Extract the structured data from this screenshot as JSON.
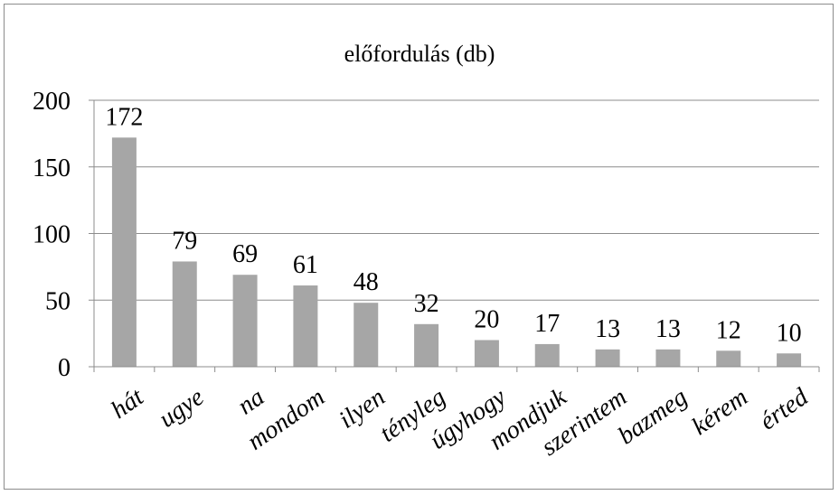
{
  "chart_data": {
    "type": "bar",
    "title": "előfordulás (db)",
    "xlabel": "",
    "ylabel": "",
    "categories": [
      "hát",
      "ugye",
      "na",
      "mondom",
      "ilyen",
      "tényleg",
      "úgyhogy",
      "mondjuk",
      "szerintem",
      "bazmeg",
      "kérem",
      "érted"
    ],
    "values": [
      172,
      79,
      69,
      61,
      48,
      32,
      20,
      17,
      13,
      13,
      12,
      10
    ],
    "ylim": [
      0,
      200
    ],
    "yticks": [
      0,
      50,
      100,
      150,
      200
    ],
    "grid": true,
    "legend": "none",
    "bar_color": "#a6a6a6",
    "data_labels": true
  }
}
